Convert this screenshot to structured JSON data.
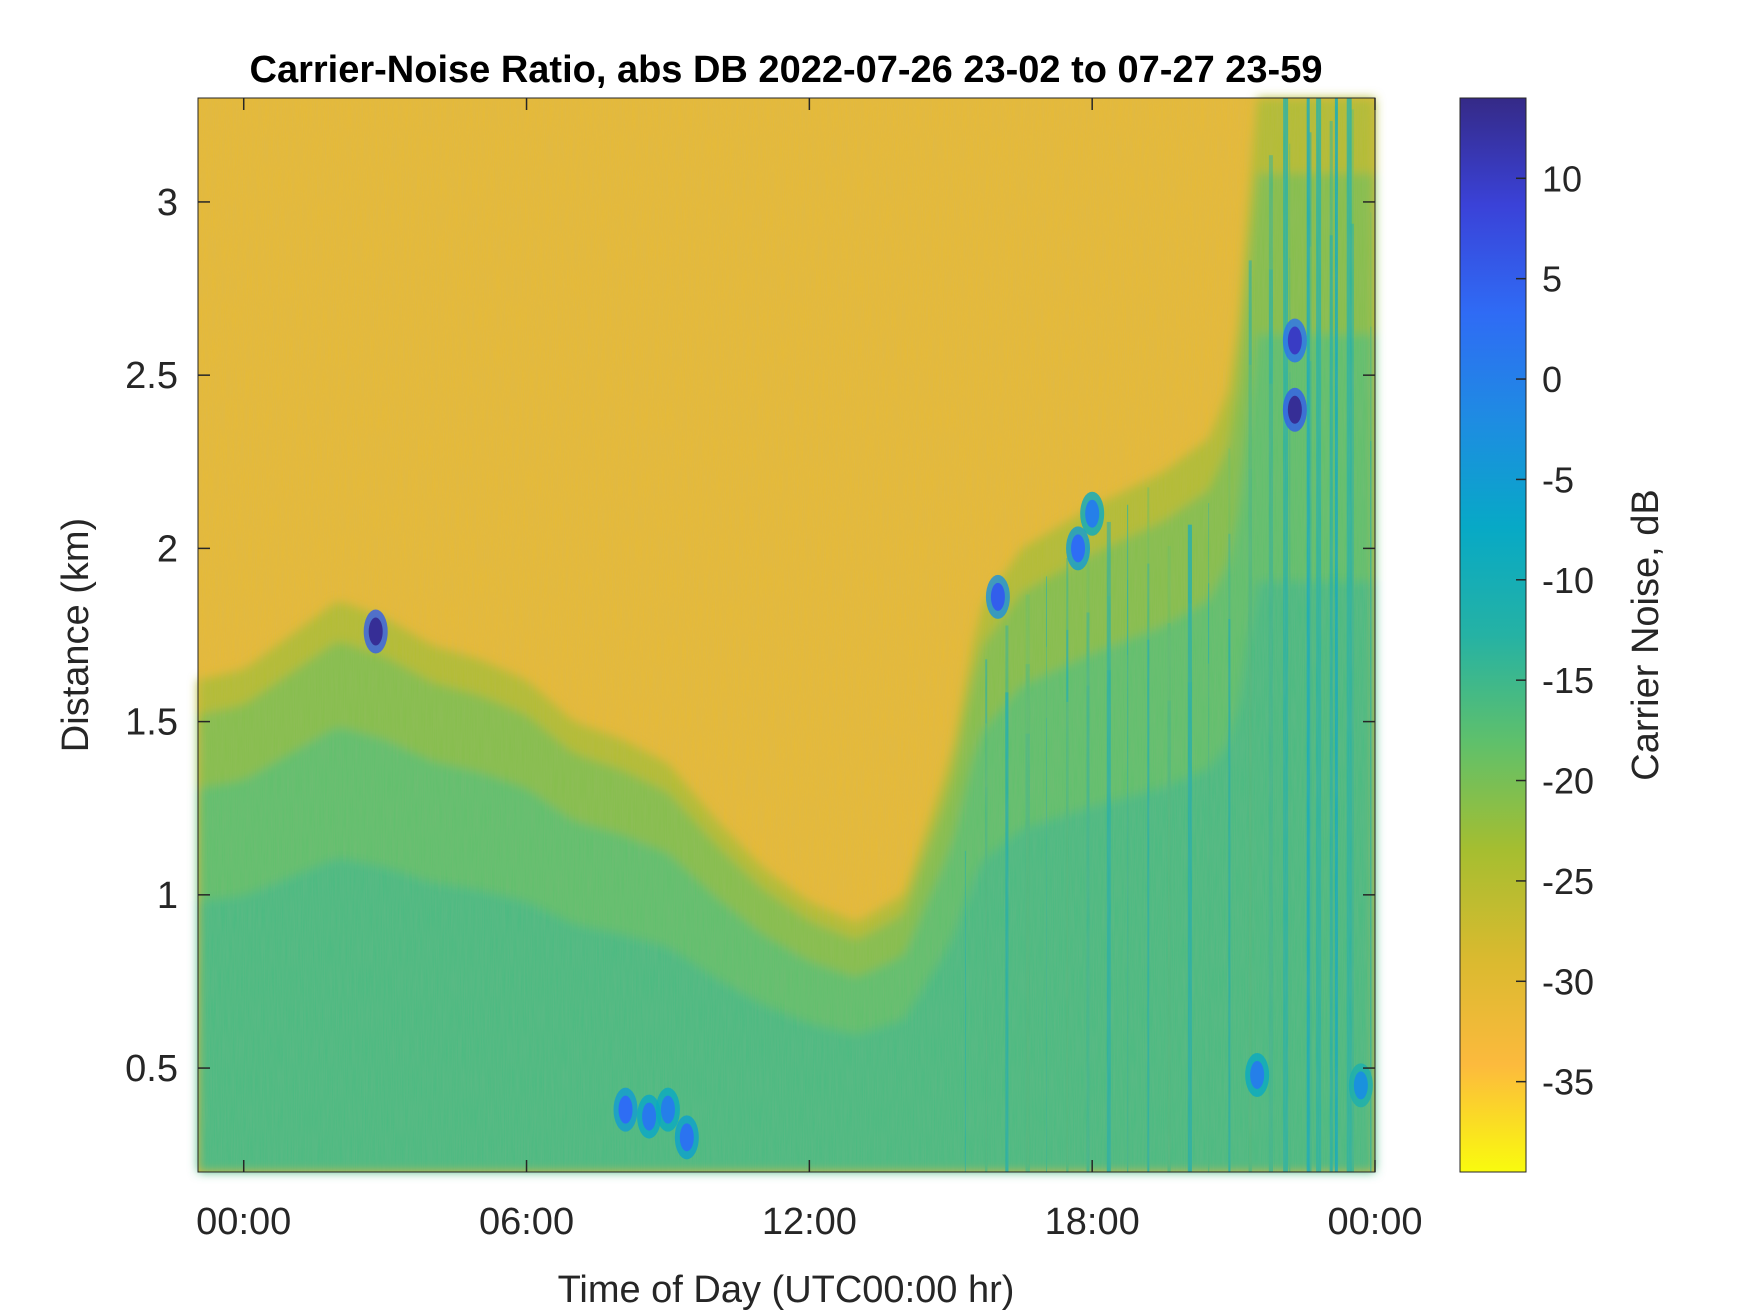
{
  "chart_data": {
    "type": "heatmap",
    "title": "Carrier-Noise Ratio, abs DB 2022-07-26 23-02 to 07-27 23-59",
    "xlabel": "Time of Day (UTC00:00 hr)",
    "ylabel": "Distance (km)",
    "colorbar_label": "Carrier Noise, dB",
    "x_ticks": [
      "00:00",
      "06:00",
      "12:00",
      "18:00",
      "00:00"
    ],
    "x_tick_hours": [
      0,
      6,
      12,
      18,
      24
    ],
    "xlim_hours": [
      -0.97,
      24.0
    ],
    "y_ticks": [
      "0.5",
      "1",
      "1.5",
      "2",
      "2.5",
      "3"
    ],
    "y_tick_values": [
      0.5,
      1,
      1.5,
      2,
      2.5,
      3
    ],
    "ylim_km": [
      0.2,
      3.3
    ],
    "colorbar_ticks": [
      "10",
      "5",
      "0",
      "-5",
      "-10",
      "-15",
      "-20",
      "-25",
      "-30",
      "-35"
    ],
    "colorbar_tick_values": [
      10,
      5,
      0,
      -5,
      -10,
      -15,
      -20,
      -25,
      -30,
      -35
    ],
    "clim_db": [
      -39.5,
      14
    ],
    "colormap": "parula",
    "colormap_stops": [
      "#F9FB0E",
      "#FCBA3D",
      "#D9BA2F",
      "#A5BE30",
      "#5FC06B",
      "#25B2A4",
      "#07A9C6",
      "#1E8CE2",
      "#2F6BF5",
      "#3A42D8",
      "#352A87"
    ],
    "boundary_layer_top_km": [
      {
        "hour": -0.97,
        "km": 1.62
      },
      {
        "hour": 0.0,
        "km": 1.65
      },
      {
        "hour": 1.0,
        "km": 1.75
      },
      {
        "hour": 2.0,
        "km": 1.85
      },
      {
        "hour": 3.0,
        "km": 1.8
      },
      {
        "hour": 4.0,
        "km": 1.72
      },
      {
        "hour": 5.0,
        "km": 1.68
      },
      {
        "hour": 6.0,
        "km": 1.62
      },
      {
        "hour": 7.0,
        "km": 1.5
      },
      {
        "hour": 8.0,
        "km": 1.45
      },
      {
        "hour": 9.0,
        "km": 1.38
      },
      {
        "hour": 10.0,
        "km": 1.22
      },
      {
        "hour": 11.0,
        "km": 1.08
      },
      {
        "hour": 12.0,
        "km": 0.98
      },
      {
        "hour": 13.0,
        "km": 0.92
      },
      {
        "hour": 14.0,
        "km": 1.0
      },
      {
        "hour": 15.0,
        "km": 1.4
      },
      {
        "hour": 15.6,
        "km": 1.82
      },
      {
        "hour": 16.5,
        "km": 2.0
      },
      {
        "hour": 18.0,
        "km": 2.12
      },
      {
        "hour": 19.5,
        "km": 2.22
      },
      {
        "hour": 20.5,
        "km": 2.32
      },
      {
        "hour": 21.0,
        "km": 2.5
      },
      {
        "hour": 21.5,
        "km": 3.3
      },
      {
        "hour": 24.0,
        "km": 3.3
      }
    ],
    "high_snr_features": [
      {
        "hour": 2.8,
        "km": 1.76,
        "db": 13
      },
      {
        "hour": 8.1,
        "km": 0.38,
        "db": 3
      },
      {
        "hour": 8.6,
        "km": 0.36,
        "db": 1
      },
      {
        "hour": 9.0,
        "km": 0.38,
        "db": 0
      },
      {
        "hour": 9.4,
        "km": 0.3,
        "db": 2
      },
      {
        "hour": 16.0,
        "km": 1.86,
        "db": 5
      },
      {
        "hour": 17.7,
        "km": 2.0,
        "db": 3
      },
      {
        "hour": 18.0,
        "km": 2.1,
        "db": 0
      },
      {
        "hour": 21.5,
        "km": 0.48,
        "db": 0
      },
      {
        "hour": 22.3,
        "km": 2.6,
        "db": 10
      },
      {
        "hour": 22.3,
        "km": 2.4,
        "db": 13
      },
      {
        "hour": 23.7,
        "km": 0.45,
        "db": -3
      }
    ]
  }
}
